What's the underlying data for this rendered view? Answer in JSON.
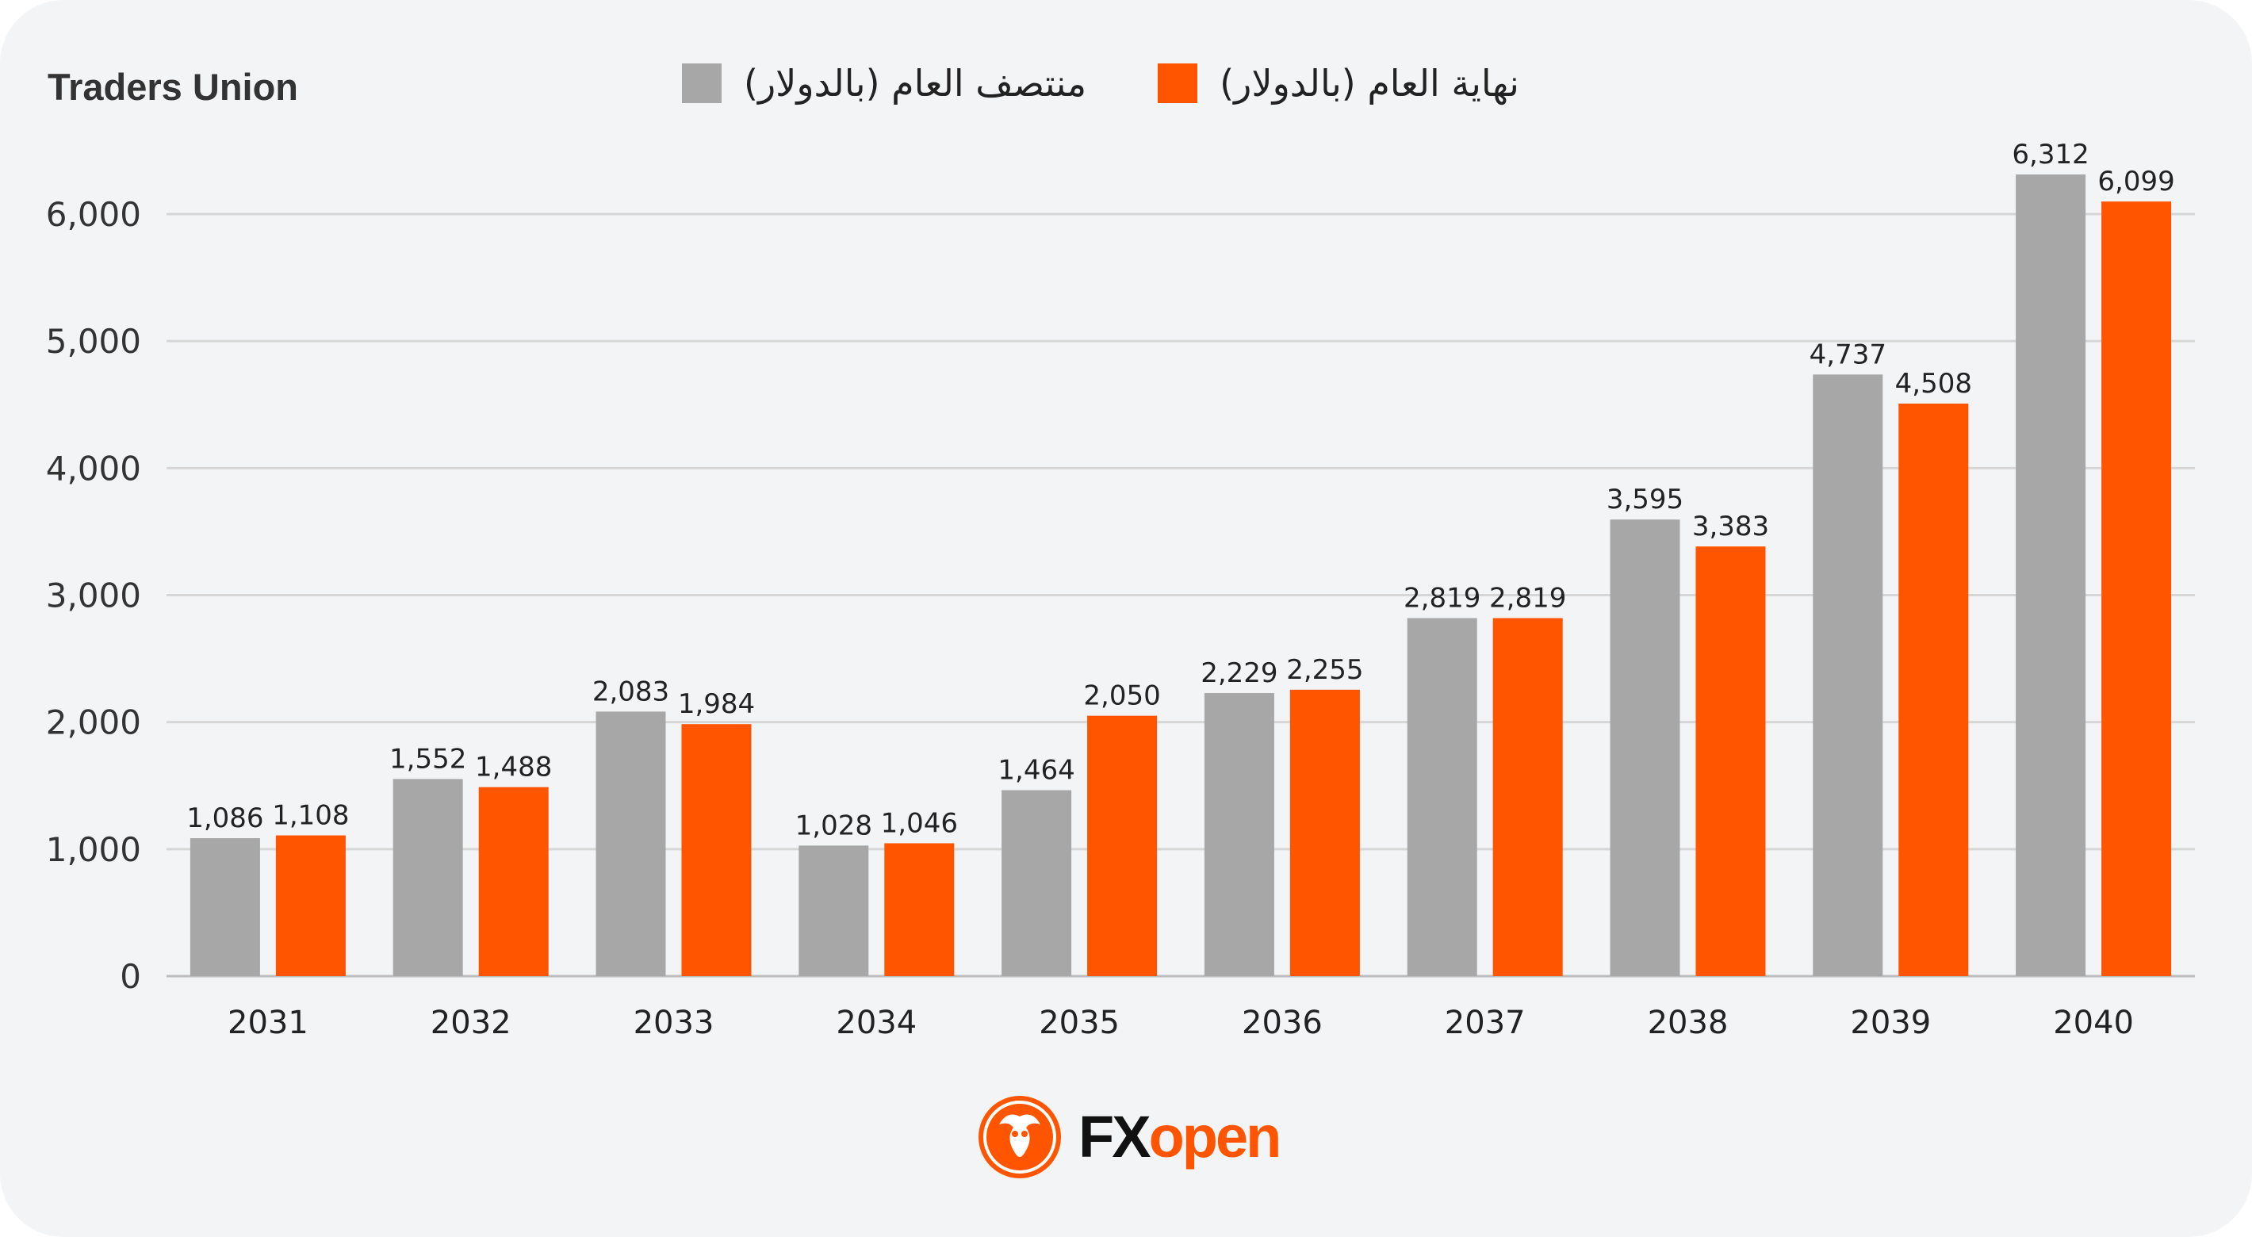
{
  "source_label": "Traders Union",
  "brand": {
    "part1": "FX",
    "part2": "open",
    "logo_icon": "bull-bear-emblem-icon"
  },
  "colors": {
    "series1": "#a7a7a7",
    "series2": "#ff5500",
    "grid": "#d6d6d6",
    "background": "#f3f4f6"
  },
  "chart_data": {
    "type": "bar",
    "categories": [
      "2031",
      "2032",
      "2033",
      "2034",
      "2035",
      "2036",
      "2037",
      "2038",
      "2039",
      "2040"
    ],
    "series": [
      {
        "name": "منتصف العام (بالدولار)",
        "values": [
          1086,
          1552,
          2083,
          1028,
          1464,
          2229,
          2819,
          3595,
          4737,
          6312
        ]
      },
      {
        "name": "نهاية العام (بالدولار)",
        "values": [
          1108,
          1488,
          1984,
          1046,
          2050,
          2255,
          2819,
          3383,
          4508,
          6099
        ]
      }
    ],
    "yticks": [
      "0",
      "1,000",
      "2,000",
      "3,000",
      "4,000",
      "5,000",
      "6,000"
    ],
    "ylim": [
      0,
      6000
    ],
    "grid": true,
    "legend_position": "top"
  }
}
